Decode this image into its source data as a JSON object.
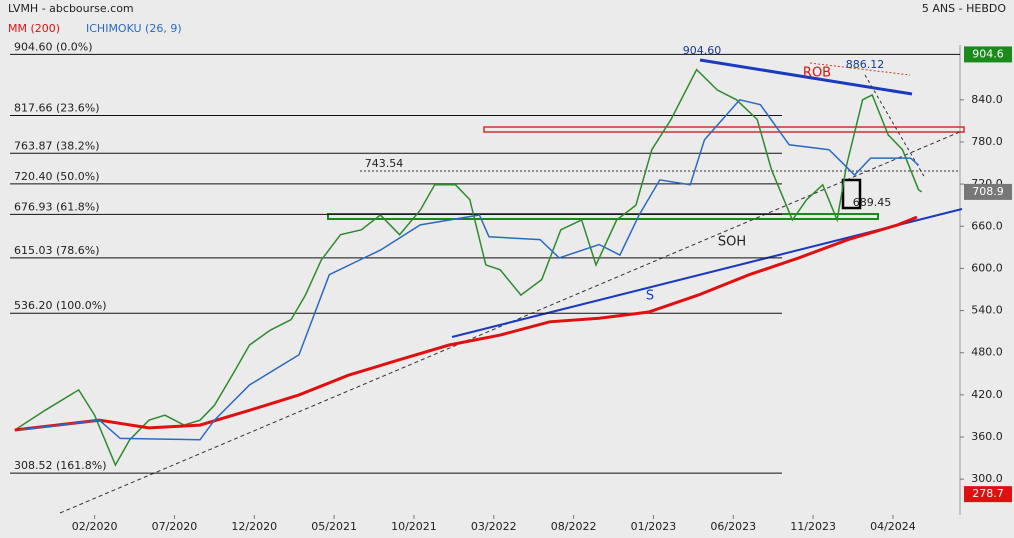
{
  "chart_data": {
    "type": "line",
    "title": "LVMH - abcbourse.com",
    "subtitle": "5 ANS - HEBDO",
    "xlim": [
      -4.3,
      55.2
    ],
    "xticks": [
      {
        "value": 1,
        "label": "02/2020"
      },
      {
        "value": 6,
        "label": "07/2020"
      },
      {
        "value": 11,
        "label": "12/2020"
      },
      {
        "value": 16,
        "label": "05/2021"
      },
      {
        "value": 21,
        "label": "10/2021"
      },
      {
        "value": 26,
        "label": "03/2022"
      },
      {
        "value": 31,
        "label": "08/2022"
      },
      {
        "value": 36,
        "label": "01/2023"
      },
      {
        "value": 41,
        "label": "06/2023"
      },
      {
        "value": 46,
        "label": "11/2023"
      },
      {
        "value": 51,
        "label": "04/2024"
      }
    ],
    "ylim": [
      249,
      918
    ],
    "yticks": [
      {
        "value": 300,
        "label": "300.0"
      },
      {
        "value": 360,
        "label": "360.0"
      },
      {
        "value": 420,
        "label": "420.0"
      },
      {
        "value": 480,
        "label": "480.0"
      },
      {
        "value": 540,
        "label": "540.0"
      },
      {
        "value": 600,
        "label": "600.0"
      },
      {
        "value": 660,
        "label": "660.0"
      },
      {
        "value": 720,
        "label": "720.0"
      },
      {
        "value": 780,
        "label": "780.0"
      },
      {
        "value": 840,
        "label": "840.0"
      }
    ],
    "series": [
      {
        "color": "#2e8b2e",
        "x": [
          -4,
          -2.1,
          0,
          1,
          2.3,
          3.2,
          4.4,
          5.4,
          6.6,
          7.6,
          8.5,
          9.8,
          10.7,
          12,
          13.3,
          14.2,
          15.2,
          16.4,
          17.7,
          18.9,
          20.1,
          21.4,
          22.3,
          23.6,
          24.5,
          25.5,
          26.4,
          27.7,
          29,
          30.2,
          31.5,
          32.4,
          33.7,
          34.9,
          35.9,
          37.1,
          38.7,
          40,
          41.2,
          42.5,
          43.4,
          44.7,
          45.6,
          46.6,
          47.5,
          48.1,
          49.1,
          49.7,
          50.7,
          51.6,
          52.6,
          52.8
        ],
        "values": [
          370,
          398,
          427,
          391,
          320,
          356,
          384,
          391,
          377,
          384,
          405,
          455,
          491,
          512,
          527,
          562,
          612,
          648,
          655,
          676,
          648,
          683,
          719,
          719,
          698,
          605,
          598,
          562,
          584,
          655,
          669,
          605,
          669,
          690,
          769,
          812,
          883,
          854,
          840,
          812,
          740,
          669,
          698,
          719,
          669,
          747,
          840,
          847,
          790,
          769,
          712,
          708.9
        ]
      },
      {
        "name": "MM (200)",
        "color": "#e01010",
        "x": [
          -4,
          1.3,
          4.4,
          7.6,
          10.7,
          13.8,
          16.9,
          20.1,
          23.2,
          26.4,
          29.5,
          32.6,
          35.7,
          38.8,
          42,
          45.1,
          48.2,
          51.3,
          52.5
        ],
        "values": [
          370,
          384,
          373,
          377,
          398,
          420,
          448,
          470,
          491,
          505,
          524,
          529,
          538,
          562,
          591,
          615,
          641,
          662,
          673
        ]
      },
      {
        "name": "ICHIMOKU (26, 9)",
        "color": "#2a6bc0",
        "x": [
          -3.7,
          1.3,
          2.6,
          7.6,
          8.5,
          10.7,
          13.8,
          15.7,
          17.6,
          18.9,
          21.4,
          25.1,
          25.7,
          28.9,
          30.1,
          32.6,
          33.9,
          35.1,
          36.4,
          38.3,
          39.2,
          41.4,
          42.7,
          44.5,
          47,
          48.6,
          49.6,
          52.1,
          52.6
        ],
        "values": [
          370,
          384,
          358,
          356,
          384,
          434,
          477,
          591,
          612,
          626,
          662,
          676,
          645,
          641,
          615,
          634,
          619,
          676,
          726,
          719,
          783,
          840,
          833,
          776,
          769,
          733,
          757,
          757,
          747
        ]
      }
    ],
    "fib_levels": [
      {
        "value": 904.6,
        "label": "904.60  (0.0%)"
      },
      {
        "value": 817.66,
        "label": "817.66  (23.6%)"
      },
      {
        "value": 763.87,
        "label": "763.87  (38.2%)"
      },
      {
        "value": 720.4,
        "label": "720.40  (50.0%)"
      },
      {
        "value": 676.93,
        "label": "676.93  (61.8%)"
      },
      {
        "value": 615.03,
        "label": "615.03  (78.6%)"
      },
      {
        "value": 536.2,
        "label": "536.20  (100.0%)"
      },
      {
        "value": 308.52,
        "label": "308.52  (161.8%)"
      }
    ],
    "axis_markers": {
      "values": [
        904.6,
        708.9,
        278.7
      ],
      "colors": [
        "#1a8a1a",
        "#777777",
        "#e01010"
      ]
    },
    "annotations": [
      {
        "text": "904.60",
        "color": "#1a3a9a"
      },
      {
        "text": "886.12",
        "color": "#1a3a9a"
      },
      {
        "text": "743.54",
        "color": "#222222"
      },
      {
        "text": "689.45",
        "color": "#222222"
      },
      {
        "text": "ROB",
        "color": "#e01010"
      },
      {
        "text": "SOH",
        "color": "#222222"
      },
      {
        "text": "S",
        "color": "#1a3ac0"
      }
    ]
  }
}
